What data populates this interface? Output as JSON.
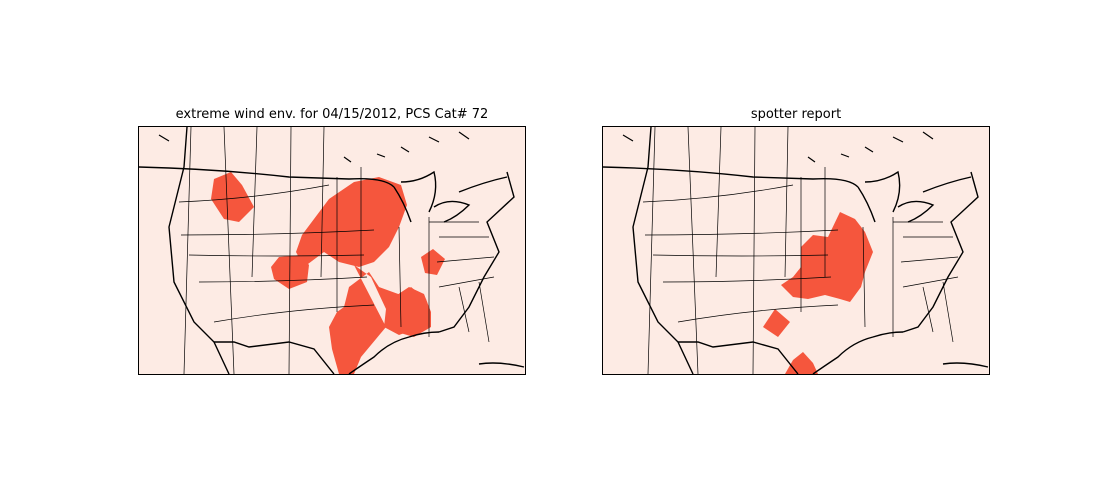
{
  "panels": [
    {
      "title": "extreme wind env. for 04/15/2012, PCS Cat# 72",
      "region": "contiguous United States",
      "fill_color": "#f5563d",
      "background_color": "#fdebe4",
      "highlighted_areas": [
        "northern Rockies",
        "upper Midwest / Great Plains",
        "central Plains",
        "eastern Texas / Gulf coast",
        "Louisiana / Mississippi",
        "Ohio Valley"
      ]
    },
    {
      "title": "spotter report",
      "region": "contiguous United States",
      "fill_color": "#f5563d",
      "background_color": "#fdebe4",
      "highlighted_areas": [
        "mid-Mississippi Valley",
        "northeast Texas",
        "south Texas coast"
      ]
    }
  ]
}
